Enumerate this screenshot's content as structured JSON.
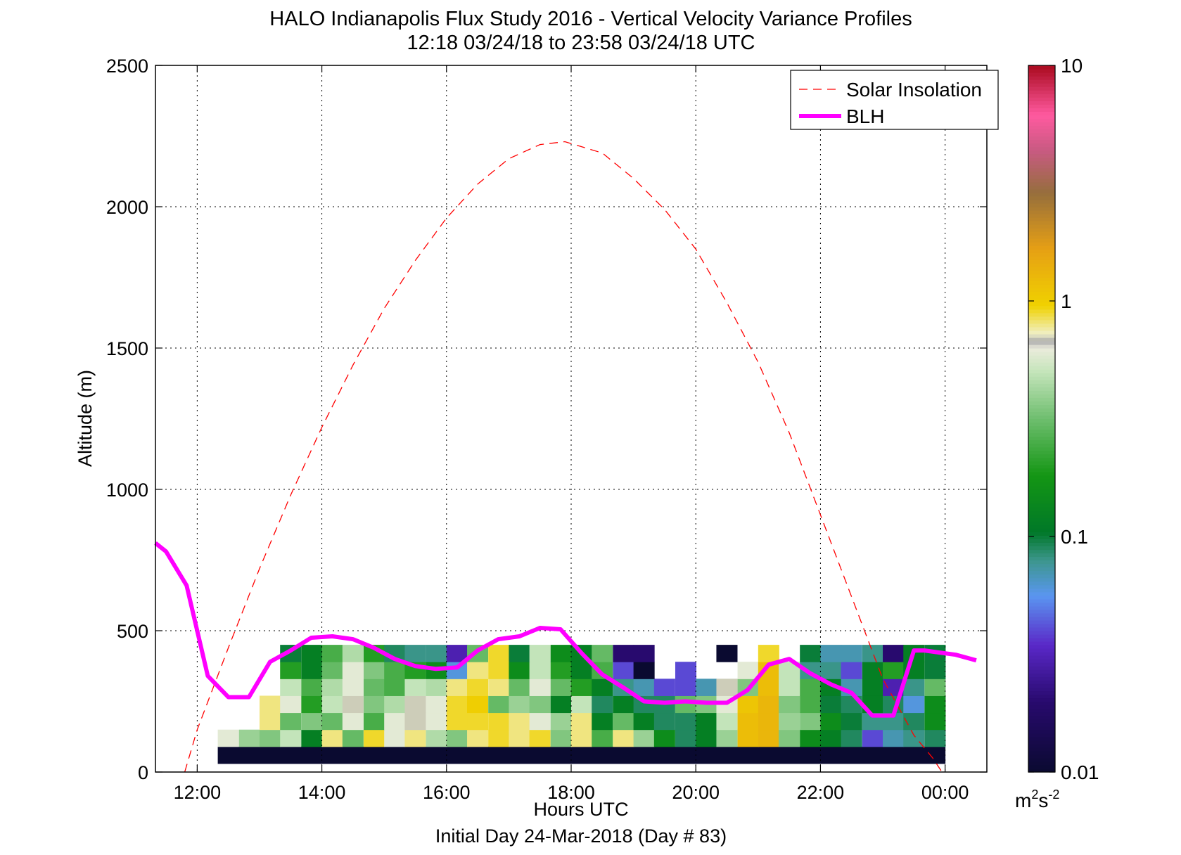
{
  "chart_data": {
    "type": "heatmap",
    "title": "HALO Indianapolis Flux Study 2016 - Vertical Velocity Variance Profiles",
    "subtitle": "12:18 03/24/18 to 23:58 03/24/18  UTC",
    "xlabel": "Hours UTC",
    "xlabel2": "Initial Day 24-Mar-2018 (Day # 83)",
    "ylabel": "Altitude (m)",
    "xlim": [
      11.33,
      24.67
    ],
    "ylim": [
      0,
      2500
    ],
    "x_ticks": [
      12,
      14,
      16,
      18,
      20,
      22,
      24
    ],
    "x_tick_labels": [
      "12:00",
      "14:00",
      "16:00",
      "18:00",
      "20:00",
      "22:00",
      "00:00"
    ],
    "y_ticks": [
      0,
      500,
      1000,
      1500,
      2000,
      2500
    ],
    "y_tick_labels": [
      "0",
      "500",
      "1000",
      "1500",
      "2000",
      "2500"
    ],
    "grid": true,
    "legend": {
      "placement": "top-right",
      "items": [
        {
          "label": "Solar Insolation",
          "color": "#ff0000",
          "style": "dashed"
        },
        {
          "label": "BLH",
          "color": "#ff00ff",
          "style": "solid-thick"
        }
      ]
    },
    "colorbar": {
      "scale": "log",
      "min": 0.01,
      "max": 10,
      "tick_values": [
        0.01,
        0.1,
        1,
        10
      ],
      "tick_labels": [
        "0.01",
        "0.1",
        "1",
        "10"
      ],
      "units_prefix": "m",
      "units_exp1": "2",
      "units_mid": "s",
      "units_exp2": "-2"
    },
    "series": [
      {
        "name": "Solar Insolation",
        "x": [
          11.8,
          12.0,
          12.5,
          13.0,
          13.5,
          14.0,
          14.5,
          15.0,
          15.5,
          16.0,
          16.5,
          17.0,
          17.5,
          17.9,
          18.5,
          19.0,
          19.5,
          20.0,
          20.5,
          21.0,
          21.5,
          22.0,
          22.5,
          23.0,
          23.5,
          23.8,
          23.95
        ],
        "y": [
          0,
          150,
          440,
          720,
          980,
          1220,
          1440,
          1640,
          1810,
          1960,
          2080,
          2170,
          2220,
          2230,
          2190,
          2100,
          1990,
          1850,
          1660,
          1450,
          1200,
          910,
          620,
          330,
          130,
          50,
          0
        ]
      },
      {
        "name": "BLH",
        "x": [
          11.33,
          11.5,
          11.83,
          12.17,
          12.5,
          12.83,
          13.17,
          13.5,
          13.83,
          14.17,
          14.5,
          14.83,
          15.17,
          15.5,
          15.83,
          16.17,
          16.5,
          16.83,
          17.17,
          17.5,
          17.83,
          18.17,
          18.5,
          18.83,
          19.17,
          19.5,
          19.83,
          20.17,
          20.5,
          20.83,
          21.17,
          21.5,
          21.83,
          22.17,
          22.5,
          22.83,
          23.17,
          23.5,
          23.67,
          23.83,
          24.17,
          24.5
        ],
        "y": [
          810,
          780,
          660,
          340,
          265,
          265,
          390,
          430,
          475,
          480,
          470,
          440,
          400,
          375,
          365,
          370,
          430,
          470,
          480,
          510,
          505,
          420,
          345,
          300,
          250,
          245,
          250,
          245,
          245,
          290,
          380,
          400,
          350,
          310,
          280,
          200,
          200,
          430,
          430,
          425,
          415,
          395
        ]
      }
    ],
    "variance_cells": [
      {
        "t": 12.33,
        "z": 60,
        "v": 0.01,
        "w": 11.67
      },
      {
        "t": 12.33,
        "z": 120,
        "v": 0.6
      },
      {
        "t": 12.67,
        "z": 120,
        "v": 0.4
      },
      {
        "t": 13.0,
        "z": 120,
        "v": 0.35
      },
      {
        "t": 13.33,
        "z": 120,
        "v": 0.5
      },
      {
        "t": 13.67,
        "z": 120,
        "v": 0.12
      },
      {
        "t": 14.0,
        "z": 120,
        "v": 0.8
      },
      {
        "t": 14.33,
        "z": 120,
        "v": 0.3
      },
      {
        "t": 14.67,
        "z": 120,
        "v": 0.9
      },
      {
        "t": 15.0,
        "z": 120,
        "v": 0.6
      },
      {
        "t": 15.33,
        "z": 120,
        "v": 0.8
      },
      {
        "t": 15.67,
        "z": 120,
        "v": 0.45
      },
      {
        "t": 16.0,
        "z": 120,
        "v": 0.35
      },
      {
        "t": 16.33,
        "z": 120,
        "v": 0.8
      },
      {
        "t": 16.67,
        "z": 120,
        "v": 0.9
      },
      {
        "t": 17.0,
        "z": 120,
        "v": 0.8
      },
      {
        "t": 17.33,
        "z": 120,
        "v": 0.9
      },
      {
        "t": 17.67,
        "z": 120,
        "v": 0.35
      },
      {
        "t": 18.0,
        "z": 120,
        "v": 0.8
      },
      {
        "t": 18.33,
        "z": 120,
        "v": 0.25
      },
      {
        "t": 18.67,
        "z": 120,
        "v": 0.8
      },
      {
        "t": 19.0,
        "z": 120,
        "v": 0.4
      },
      {
        "t": 19.33,
        "z": 120,
        "v": 0.15
      },
      {
        "t": 19.67,
        "z": 120,
        "v": 0.09
      },
      {
        "t": 20.0,
        "z": 120,
        "v": 0.12
      },
      {
        "t": 20.33,
        "z": 120,
        "v": 0.4
      },
      {
        "t": 20.67,
        "z": 120,
        "v": 1.2
      },
      {
        "t": 21.0,
        "z": 120,
        "v": 1.3
      },
      {
        "t": 21.33,
        "z": 120,
        "v": 0.35
      },
      {
        "t": 21.67,
        "z": 120,
        "v": 0.15
      },
      {
        "t": 22.0,
        "z": 120,
        "v": 0.12
      },
      {
        "t": 22.33,
        "z": 120,
        "v": 0.09
      },
      {
        "t": 22.67,
        "z": 120,
        "v": 0.04
      },
      {
        "t": 23.0,
        "z": 120,
        "v": 0.07
      },
      {
        "t": 23.33,
        "z": 120,
        "v": 0.08
      },
      {
        "t": 23.67,
        "z": 120,
        "v": 0.09
      },
      {
        "t": 13.0,
        "z": 180,
        "v": 0.8
      },
      {
        "t": 13.33,
        "z": 180,
        "v": 0.3
      },
      {
        "t": 13.67,
        "z": 180,
        "v": 0.35
      },
      {
        "t": 14.0,
        "z": 180,
        "v": 0.3
      },
      {
        "t": 14.33,
        "z": 180,
        "v": 0.6
      },
      {
        "t": 14.67,
        "z": 180,
        "v": 0.25
      },
      {
        "t": 15.0,
        "z": 180,
        "v": 0.6
      },
      {
        "t": 15.33,
        "z": 180,
        "v": 0.7
      },
      {
        "t": 15.67,
        "z": 180,
        "v": 0.6
      },
      {
        "t": 16.0,
        "z": 180,
        "v": 0.9
      },
      {
        "t": 16.33,
        "z": 180,
        "v": 0.9
      },
      {
        "t": 16.67,
        "z": 180,
        "v": 0.9
      },
      {
        "t": 17.0,
        "z": 180,
        "v": 0.8
      },
      {
        "t": 17.33,
        "z": 180,
        "v": 0.6
      },
      {
        "t": 17.67,
        "z": 180,
        "v": 0.4
      },
      {
        "t": 18.0,
        "z": 180,
        "v": 0.8
      },
      {
        "t": 18.33,
        "z": 180,
        "v": 0.12
      },
      {
        "t": 18.67,
        "z": 180,
        "v": 0.3
      },
      {
        "t": 19.0,
        "z": 180,
        "v": 0.12
      },
      {
        "t": 19.33,
        "z": 180,
        "v": 0.09
      },
      {
        "t": 19.67,
        "z": 180,
        "v": 0.09
      },
      {
        "t": 20.0,
        "z": 180,
        "v": 0.12
      },
      {
        "t": 20.33,
        "z": 180,
        "v": 0.5
      },
      {
        "t": 20.67,
        "z": 180,
        "v": 1.2
      },
      {
        "t": 21.0,
        "z": 180,
        "v": 1.3
      },
      {
        "t": 21.33,
        "z": 180,
        "v": 0.4
      },
      {
        "t": 21.67,
        "z": 180,
        "v": 0.35
      },
      {
        "t": 22.0,
        "z": 180,
        "v": 0.15
      },
      {
        "t": 22.33,
        "z": 180,
        "v": 0.1
      },
      {
        "t": 22.67,
        "z": 180,
        "v": 0.08
      },
      {
        "t": 23.0,
        "z": 180,
        "v": 0.08
      },
      {
        "t": 23.33,
        "z": 180,
        "v": 0.09
      },
      {
        "t": 23.67,
        "z": 180,
        "v": 0.15
      },
      {
        "t": 13.0,
        "z": 240,
        "v": 0.8
      },
      {
        "t": 13.33,
        "z": 240,
        "v": 0.6
      },
      {
        "t": 13.67,
        "z": 240,
        "v": 0.2
      },
      {
        "t": 14.0,
        "z": 240,
        "v": 0.5
      },
      {
        "t": 14.33,
        "z": 240,
        "v": 0.7
      },
      {
        "t": 14.67,
        "z": 240,
        "v": 0.35
      },
      {
        "t": 15.0,
        "z": 240,
        "v": 0.45
      },
      {
        "t": 15.33,
        "z": 240,
        "v": 0.7
      },
      {
        "t": 15.67,
        "z": 240,
        "v": 0.6
      },
      {
        "t": 16.0,
        "z": 240,
        "v": 0.9
      },
      {
        "t": 16.33,
        "z": 240,
        "v": 1.0
      },
      {
        "t": 16.67,
        "z": 240,
        "v": 0.3
      },
      {
        "t": 17.0,
        "z": 240,
        "v": 0.4
      },
      {
        "t": 17.33,
        "z": 240,
        "v": 0.35
      },
      {
        "t": 17.67,
        "z": 240,
        "v": 0.12
      },
      {
        "t": 18.0,
        "z": 240,
        "v": 0.5
      },
      {
        "t": 18.33,
        "z": 240,
        "v": 0.09
      },
      {
        "t": 18.67,
        "z": 240,
        "v": 0.12
      },
      {
        "t": 19.0,
        "z": 240,
        "v": 0.09
      },
      {
        "t": 19.33,
        "z": 240,
        "v": 0.09
      },
      {
        "t": 19.67,
        "z": 240,
        "v": 0.3
      },
      {
        "t": 20.0,
        "z": 240,
        "v": 0.35
      },
      {
        "t": 20.33,
        "z": 240,
        "v": 0.6
      },
      {
        "t": 20.67,
        "z": 240,
        "v": 1.1
      },
      {
        "t": 21.0,
        "z": 240,
        "v": 1.3
      },
      {
        "t": 21.33,
        "z": 240,
        "v": 0.35
      },
      {
        "t": 21.67,
        "z": 240,
        "v": 0.25
      },
      {
        "t": 22.0,
        "z": 240,
        "v": 0.1
      },
      {
        "t": 22.33,
        "z": 240,
        "v": 0.09
      },
      {
        "t": 22.67,
        "z": 240,
        "v": 0.12
      },
      {
        "t": 23.0,
        "z": 240,
        "v": 0.09
      },
      {
        "t": 23.33,
        "z": 240,
        "v": 0.06
      },
      {
        "t": 23.67,
        "z": 240,
        "v": 0.15
      },
      {
        "t": 13.33,
        "z": 300,
        "v": 0.5
      },
      {
        "t": 13.67,
        "z": 300,
        "v": 0.25
      },
      {
        "t": 14.0,
        "z": 300,
        "v": 0.45
      },
      {
        "t": 14.33,
        "z": 300,
        "v": 0.6
      },
      {
        "t": 14.67,
        "z": 300,
        "v": 0.3
      },
      {
        "t": 15.0,
        "z": 300,
        "v": 0.25
      },
      {
        "t": 15.33,
        "z": 300,
        "v": 0.5
      },
      {
        "t": 15.67,
        "z": 300,
        "v": 0.45
      },
      {
        "t": 16.0,
        "z": 300,
        "v": 0.8
      },
      {
        "t": 16.33,
        "z": 300,
        "v": 0.9
      },
      {
        "t": 16.67,
        "z": 300,
        "v": 0.8
      },
      {
        "t": 17.0,
        "z": 300,
        "v": 0.3
      },
      {
        "t": 17.33,
        "z": 300,
        "v": 0.6
      },
      {
        "t": 17.67,
        "z": 300,
        "v": 0.3
      },
      {
        "t": 18.0,
        "z": 300,
        "v": 0.2
      },
      {
        "t": 18.33,
        "z": 300,
        "v": 0.12
      },
      {
        "t": 18.67,
        "z": 300,
        "v": 0.08
      },
      {
        "t": 19.0,
        "z": 300,
        "v": 0.07
      },
      {
        "t": 19.33,
        "z": 300,
        "v": 0.04
      },
      {
        "t": 19.67,
        "z": 300,
        "v": 0.04
      },
      {
        "t": 20.0,
        "z": 300,
        "v": 0.07
      },
      {
        "t": 20.33,
        "z": 300,
        "v": 0.7
      },
      {
        "t": 20.67,
        "z": 300,
        "v": 0.35
      },
      {
        "t": 21.0,
        "z": 300,
        "v": 1.2
      },
      {
        "t": 21.33,
        "z": 300,
        "v": 0.5
      },
      {
        "t": 21.67,
        "z": 300,
        "v": 0.25
      },
      {
        "t": 22.0,
        "z": 300,
        "v": 0.12
      },
      {
        "t": 22.33,
        "z": 300,
        "v": 0.07
      },
      {
        "t": 22.67,
        "z": 300,
        "v": 0.12
      },
      {
        "t": 23.0,
        "z": 300,
        "v": 0.03
      },
      {
        "t": 23.33,
        "z": 300,
        "v": 0.08
      },
      {
        "t": 23.67,
        "z": 300,
        "v": 0.3
      },
      {
        "t": 13.33,
        "z": 360,
        "v": 0.2
      },
      {
        "t": 13.67,
        "z": 360,
        "v": 0.12
      },
      {
        "t": 14.0,
        "z": 360,
        "v": 0.3
      },
      {
        "t": 14.33,
        "z": 360,
        "v": 0.6
      },
      {
        "t": 14.67,
        "z": 360,
        "v": 0.35
      },
      {
        "t": 15.0,
        "z": 360,
        "v": 0.25
      },
      {
        "t": 15.33,
        "z": 360,
        "v": 0.2
      },
      {
        "t": 15.67,
        "z": 360,
        "v": 0.15
      },
      {
        "t": 16.0,
        "z": 360,
        "v": 0.06
      },
      {
        "t": 16.33,
        "z": 360,
        "v": 0.8
      },
      {
        "t": 16.67,
        "z": 360,
        "v": 0.9
      },
      {
        "t": 17.0,
        "z": 360,
        "v": 0.15
      },
      {
        "t": 17.33,
        "z": 360,
        "v": 0.5
      },
      {
        "t": 17.67,
        "z": 360,
        "v": 0.2
      },
      {
        "t": 18.0,
        "z": 360,
        "v": 0.12
      },
      {
        "t": 18.33,
        "z": 360,
        "v": 0.25
      },
      {
        "t": 18.67,
        "z": 360,
        "v": 0.04
      },
      {
        "t": 19.0,
        "z": 360,
        "v": 0.01
      },
      {
        "t": 19.67,
        "z": 360,
        "v": 0.04
      },
      {
        "t": 20.67,
        "z": 360,
        "v": 0.6
      },
      {
        "t": 21.0,
        "z": 360,
        "v": 1.2
      },
      {
        "t": 21.33,
        "z": 360,
        "v": 0.5
      },
      {
        "t": 21.67,
        "z": 360,
        "v": 0.08
      },
      {
        "t": 22.0,
        "z": 360,
        "v": 0.08
      },
      {
        "t": 22.33,
        "z": 360,
        "v": 0.04
      },
      {
        "t": 22.67,
        "z": 360,
        "v": 0.12
      },
      {
        "t": 23.0,
        "z": 360,
        "v": 0.2
      },
      {
        "t": 23.33,
        "z": 360,
        "v": 0.12
      },
      {
        "t": 23.67,
        "z": 360,
        "v": 0.1
      },
      {
        "t": 13.33,
        "z": 420,
        "v": 0.1
      },
      {
        "t": 13.67,
        "z": 420,
        "v": 0.12
      },
      {
        "t": 14.0,
        "z": 420,
        "v": 0.25
      },
      {
        "t": 14.33,
        "z": 420,
        "v": 0.45
      },
      {
        "t": 14.67,
        "z": 420,
        "v": 0.2
      },
      {
        "t": 15.0,
        "z": 420,
        "v": 0.09
      },
      {
        "t": 15.33,
        "z": 420,
        "v": 0.08
      },
      {
        "t": 15.67,
        "z": 420,
        "v": 0.08
      },
      {
        "t": 16.0,
        "z": 420,
        "v": 0.03
      },
      {
        "t": 16.33,
        "z": 420,
        "v": 0.3
      },
      {
        "t": 16.67,
        "z": 420,
        "v": 0.9
      },
      {
        "t": 17.0,
        "z": 420,
        "v": 0.1
      },
      {
        "t": 17.33,
        "z": 420,
        "v": 0.5
      },
      {
        "t": 17.67,
        "z": 420,
        "v": 0.15
      },
      {
        "t": 18.0,
        "z": 420,
        "v": 0.12
      },
      {
        "t": 18.33,
        "z": 420,
        "v": 0.3
      },
      {
        "t": 18.67,
        "z": 420,
        "v": 0.02
      },
      {
        "t": 19.0,
        "z": 420,
        "v": 0.02
      },
      {
        "t": 20.33,
        "z": 420,
        "v": 0.0
      },
      {
        "t": 21.0,
        "z": 420,
        "v": 0.9
      },
      {
        "t": 21.67,
        "z": 420,
        "v": 0.1
      },
      {
        "t": 22.0,
        "z": 420,
        "v": 0.07
      },
      {
        "t": 22.33,
        "z": 420,
        "v": 0.07
      },
      {
        "t": 22.67,
        "z": 420,
        "v": 0.08
      },
      {
        "t": 23.0,
        "z": 420,
        "v": 0.02
      },
      {
        "t": 23.33,
        "z": 420,
        "v": 0.12
      },
      {
        "t": 23.67,
        "z": 420,
        "v": 0.1
      }
    ]
  }
}
